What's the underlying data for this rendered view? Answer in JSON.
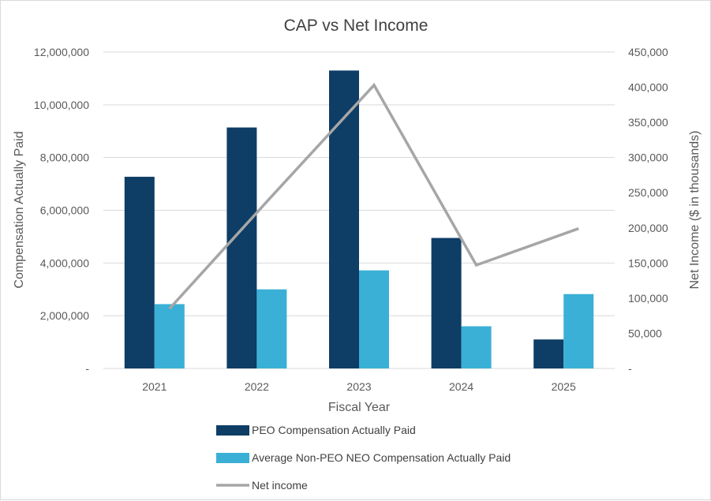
{
  "chart_data": {
    "type": "bar",
    "title": "CAP vs Net Income",
    "xlabel": "Fiscal Year",
    "ylabel": "Compensation Actually Paid",
    "y2label": "Net Income ($ in thousands)",
    "categories": [
      "2021",
      "2022",
      "2023",
      "2024",
      "2025"
    ],
    "ylim": [
      0,
      12000000
    ],
    "y2lim": [
      0,
      450000
    ],
    "yticks": [
      "-",
      "2,000,000",
      "4,000,000",
      "6,000,000",
      "8,000,000",
      "10,000,000",
      "12,000,000"
    ],
    "y2ticks": [
      "-",
      "50,000",
      "100,000",
      "150,000",
      "200,000",
      "250,000",
      "300,000",
      "350,000",
      "400,000",
      "450,000"
    ],
    "grid": true,
    "legend_position": "bottom",
    "series": [
      {
        "name": "PEO Compensation Actually Paid",
        "type": "bar",
        "axis": "left",
        "color": "#0e3d66",
        "values": [
          7270000,
          9140000,
          11300000,
          4950000,
          1100000
        ]
      },
      {
        "name": "Average Non-PEO NEO Compensation Actually Paid",
        "type": "bar",
        "axis": "left",
        "color": "#3ab0d6",
        "values": [
          2440000,
          3000000,
          3720000,
          1600000,
          2820000
        ]
      },
      {
        "name": "Net income",
        "type": "line",
        "axis": "right",
        "color": "#a6a6a6",
        "values": [
          85000,
          245000,
          403000,
          147000,
          199000
        ]
      }
    ]
  }
}
